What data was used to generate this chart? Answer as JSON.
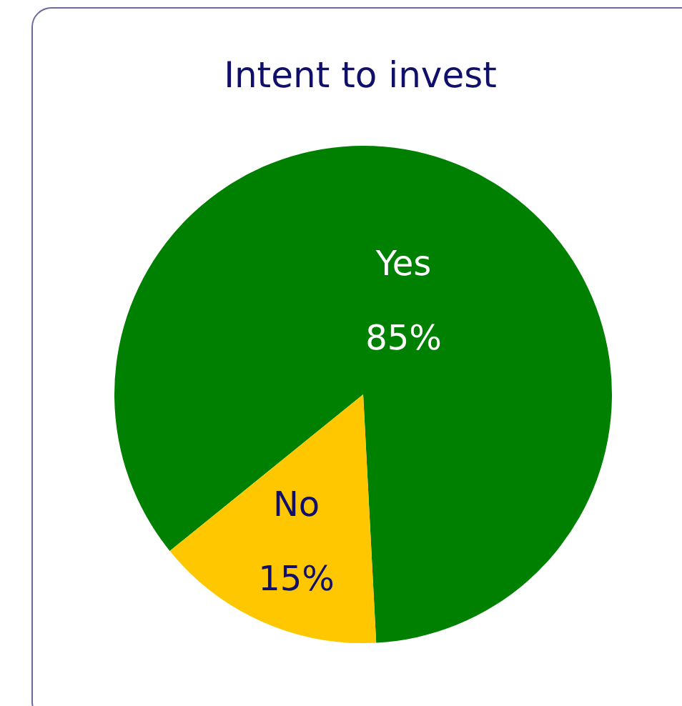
{
  "chart_data": {
    "type": "pie",
    "title": "Intent to invest",
    "categories": [
      "Yes",
      "No"
    ],
    "values": [
      85,
      15
    ],
    "colors": [
      "#008000",
      "#ffc700"
    ],
    "value_labels": [
      "85%",
      "15%"
    ],
    "legend": false
  }
}
